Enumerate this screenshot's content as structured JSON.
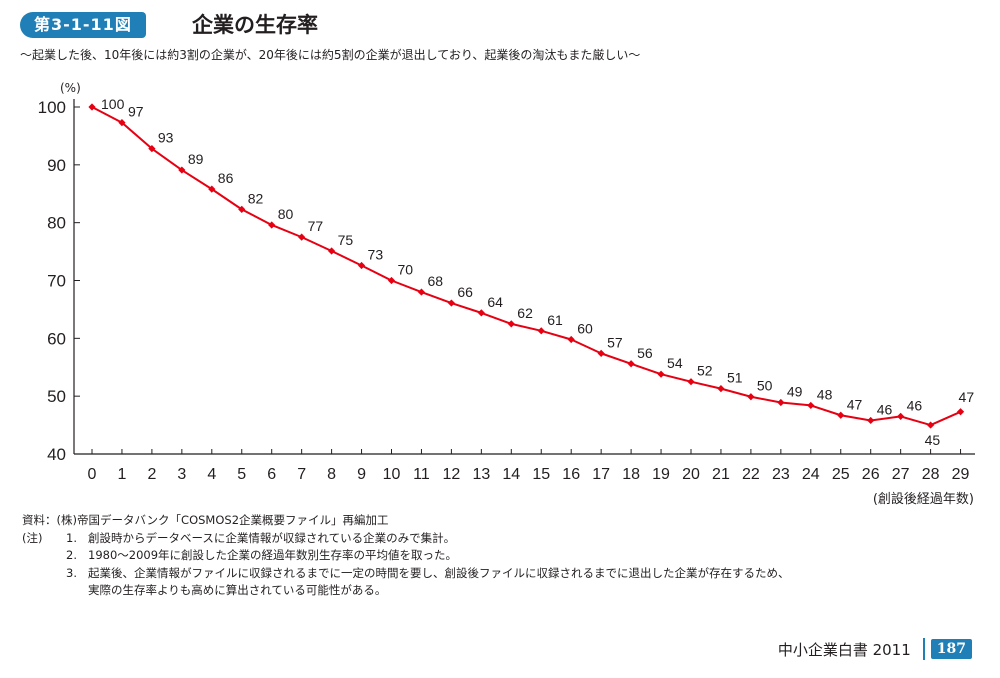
{
  "figure": {
    "number": "第3-1-11図",
    "title": "企業の生存率",
    "subtitle": "～起業した後、10年後には約3割の企業が、20年後には約5割の企業が退出しており、起業後の淘汰もまた厳しい～"
  },
  "chart_data": {
    "type": "line",
    "title": "企業の生存率",
    "ylabel": "(%)",
    "xlabel": "(創設後経過年数)",
    "ylim": [
      40,
      100
    ],
    "yticks": [
      40,
      50,
      60,
      70,
      80,
      90,
      100
    ],
    "x": [
      0,
      1,
      2,
      3,
      4,
      5,
      6,
      7,
      8,
      9,
      10,
      11,
      12,
      13,
      14,
      15,
      16,
      17,
      18,
      19,
      20,
      21,
      22,
      23,
      24,
      25,
      26,
      27,
      28,
      29
    ],
    "series": [
      {
        "name": "生存率",
        "values": [
          100,
          97,
          93,
          89,
          86,
          82,
          80,
          77,
          75,
          73,
          70,
          68,
          66,
          64,
          62,
          61,
          60,
          57,
          56,
          54,
          52,
          51,
          50,
          49,
          48,
          47,
          46,
          46,
          45,
          47
        ],
        "plot_values": [
          100,
          97.3,
          92.8,
          89.1,
          85.8,
          82.3,
          79.6,
          77.5,
          75.1,
          72.6,
          70.0,
          68.0,
          66.1,
          64.4,
          62.5,
          61.3,
          59.8,
          57.4,
          55.6,
          53.8,
          52.5,
          51.3,
          49.9,
          48.9,
          48.4,
          46.7,
          45.8,
          46.5,
          45.0,
          47.3
        ],
        "color": "#e60012"
      }
    ]
  },
  "notes": {
    "source_label": "資料：",
    "source": "(株)帝国データバンク「COSMOS2企業概要ファイル」再編加工",
    "note_label": "(注)",
    "items": [
      {
        "num": "1.",
        "text": "創設時からデータベースに企業情報が収録されている企業のみで集計。"
      },
      {
        "num": "2.",
        "text": "1980～2009年に創設した企業の経過年数別生存率の平均値を取った。"
      },
      {
        "num": "3.",
        "text": "起業後、企業情報がファイルに収録されるまでに一定の時間を要し、創設後ファイルに収録されるまでに退出した企業が存在するため、"
      },
      {
        "num": "",
        "text": "実際の生存率よりも高めに算出されている可能性がある。"
      }
    ]
  },
  "footer": {
    "book": "中小企業白書 2011",
    "page": "187"
  },
  "colors": {
    "accent": "#1f7fb6",
    "line": "#e60012"
  }
}
